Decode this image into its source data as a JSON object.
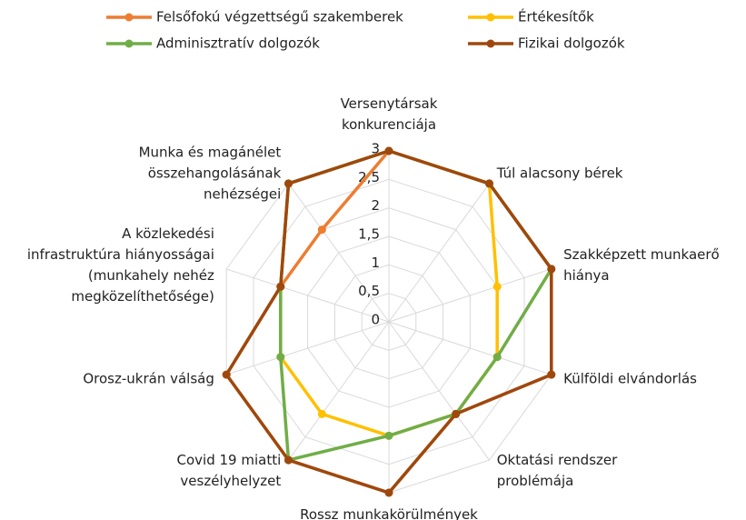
{
  "chart_data": {
    "type": "radar",
    "categories": [
      "Versenytársak\nkonkurenciája",
      "Túl alacsony bérek",
      "Szakképzett munkaerő\nhiánya",
      "Külföldi elvándorlás",
      "Oktatási rendszer\nproblémája",
      "Rossz munkakörülmények",
      "Covid 19 miatti\nveszélyhelyzet",
      "Orosz-ukrán válság",
      "A közlekedési\ninfrastruktúra hiányosságai\n(munkahely nehéz\nmegközelíthetősége)",
      "Munka és magánélet\nösszehangolásának\nnehézségei"
    ],
    "series": [
      {
        "name": "Felsőfokú végzettségű szakemberek",
        "color": "#ED7D31",
        "values": [
          3,
          3,
          3,
          3,
          2,
          3,
          3,
          3,
          2,
          2
        ]
      },
      {
        "name": "Értékesítők",
        "color": "#FFC000",
        "values": [
          3,
          3,
          2,
          2,
          2,
          2,
          2,
          2,
          2,
          3
        ]
      },
      {
        "name": "Adminisztratív dolgozók",
        "color": "#70AD47",
        "values": [
          3,
          3,
          3,
          2,
          2,
          2,
          3,
          2,
          2,
          3
        ]
      },
      {
        "name": "Fizikai dolgozók",
        "color": "#9E480E",
        "values": [
          3,
          3,
          3,
          3,
          2,
          3,
          3,
          3,
          2,
          3
        ]
      }
    ],
    "ylim": [
      0,
      3
    ],
    "yticks": [
      0,
      {
        "value": 0.5,
        "label": "0,5"
      },
      1,
      {
        "value": 1.5,
        "label": "1,5"
      },
      2,
      {
        "value": 2.5,
        "label": "2,5"
      },
      3
    ],
    "grid": true,
    "legend": "top"
  }
}
